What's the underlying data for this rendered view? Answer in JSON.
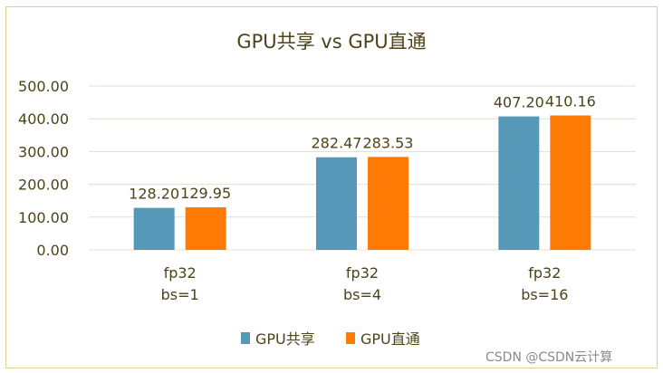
{
  "chart_data": {
    "type": "bar",
    "title": "GPU共享 vs GPU直通",
    "categories": [
      [
        "fp32",
        "bs=1"
      ],
      [
        "fp32",
        "bs=4"
      ],
      [
        "fp32",
        "bs=16"
      ]
    ],
    "series": [
      {
        "name": "GPU共享",
        "values": [
          128.2,
          282.47,
          407.2
        ],
        "labels": [
          "128.20",
          "282.47",
          "407.20"
        ],
        "color": "#5797b8"
      },
      {
        "name": "GPU直通",
        "values": [
          129.95,
          283.53,
          410.16
        ],
        "labels": [
          "129.95",
          "283.53",
          "410.16"
        ],
        "color": "#fd7b04"
      }
    ],
    "ylim": [
      0,
      500
    ],
    "yticks": [
      "0.00",
      "100.00",
      "200.00",
      "300.00",
      "400.00",
      "500.00"
    ],
    "grid": true,
    "legend": "bottom",
    "xlabel": "",
    "ylabel": ""
  },
  "colors": {
    "text": "#4d4318",
    "grid": "#e3e0c6",
    "border": "#e2cf8a"
  },
  "watermark": "CSDN @CSDN云计算"
}
